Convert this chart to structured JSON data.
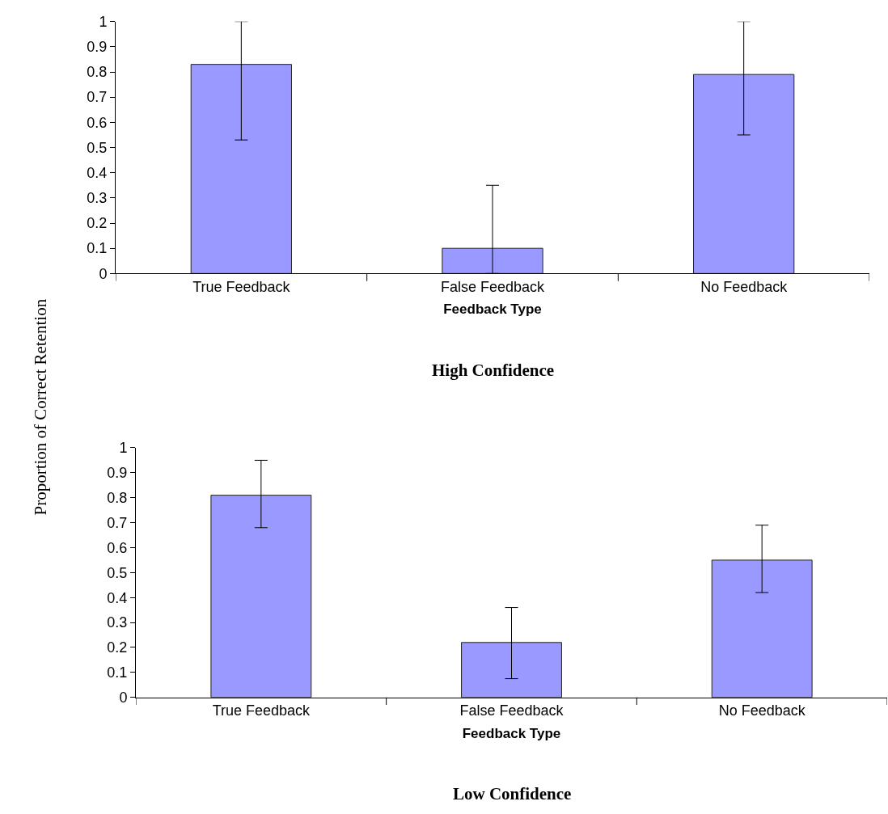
{
  "chart_data": [
    {
      "type": "bar",
      "title": "High Confidence",
      "xlabel": "Feedback Type",
      "ylabel": "Proportion of Correct Retention",
      "categories": [
        "True Feedback",
        "False Feedback",
        "No Feedback"
      ],
      "values": [
        0.83,
        0.1,
        0.79
      ],
      "color": "#9999ff",
      "errors": [
        [
          0.53,
          1.0
        ],
        [
          0,
          0.35
        ],
        [
          0.55,
          1.0
        ]
      ],
      "ylim": [
        0,
        1
      ],
      "yticks": [
        0,
        0.1,
        0.2,
        0.3,
        0.4,
        0.5,
        0.6,
        0.7,
        0.8,
        0.9,
        1
      ]
    },
    {
      "type": "bar",
      "title": "Low Confidence",
      "xlabel": "Feedback Type",
      "categories": [
        "True Feedback",
        "False Feedback",
        "No Feedback"
      ],
      "values": [
        0.81,
        0.22,
        0.55
      ],
      "color": "#9999ff",
      "errors": [
        [
          0.68,
          0.95
        ],
        [
          0.075,
          0.36
        ],
        [
          0.42,
          0.69
        ]
      ],
      "ylim": [
        0,
        1
      ],
      "yticks": [
        0,
        0.1,
        0.2,
        0.3,
        0.4,
        0.5,
        0.6,
        0.7,
        0.8,
        0.9,
        1
      ]
    }
  ]
}
